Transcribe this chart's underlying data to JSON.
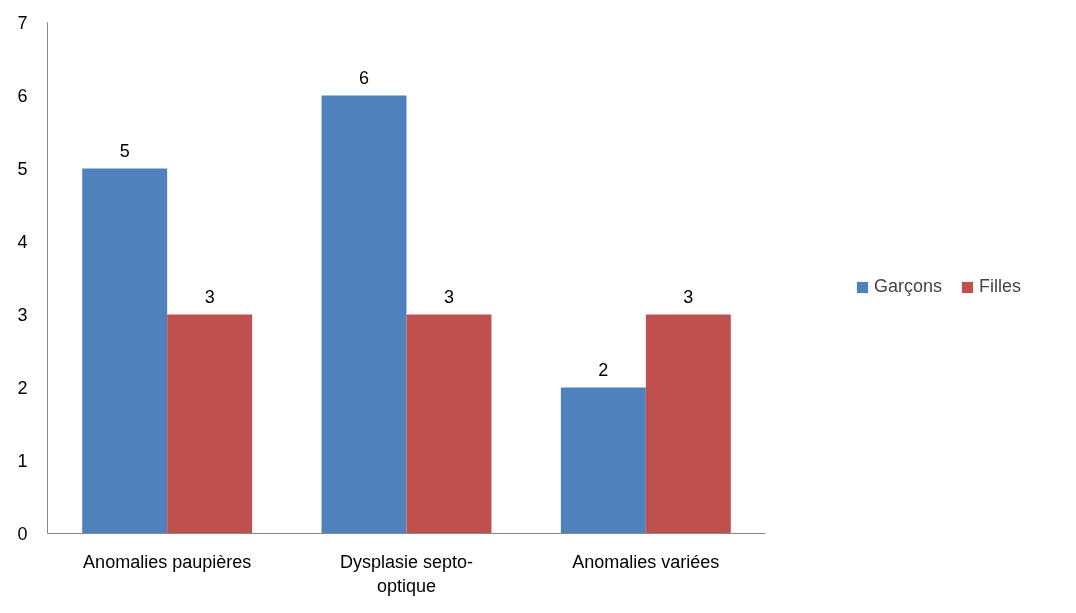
{
  "chart_data": {
    "type": "bar",
    "categories": [
      "Anomalies paupières",
      "Dysplasie septo-optique",
      "Anomalies variées"
    ],
    "series": [
      {
        "name": "Garçons",
        "color": "#4f81bd",
        "values": [
          5,
          6,
          2
        ]
      },
      {
        "name": "Filles",
        "color": "#c0504d",
        "values": [
          3,
          3,
          3
        ]
      }
    ],
    "ylim": [
      0,
      7
    ],
    "yticks": [
      0,
      1,
      2,
      3,
      4,
      5,
      6,
      7
    ],
    "grid": false,
    "legend": "right",
    "data_labels": true
  }
}
